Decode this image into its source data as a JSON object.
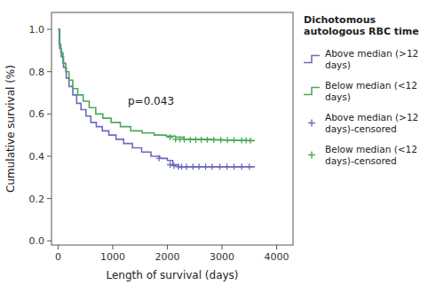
{
  "chart_data": {
    "type": "line",
    "title": "",
    "xlabel": "Length of survival (days)",
    "ylabel": "Cumulative survival (%)",
    "xlim": [
      -120,
      4300
    ],
    "ylim": [
      -0.02,
      1.08
    ],
    "xticks": [
      0,
      1000,
      2000,
      3000,
      4000
    ],
    "yticks": [
      {
        "value": 0.0,
        "label": "0.0"
      },
      0.2,
      0.4,
      0.6,
      0.8,
      {
        "value": 1.0,
        "label": "1.0"
      }
    ],
    "grid": false,
    "legend": "right",
    "legend_title": "Dichotomous\nautologous RBC time",
    "annotations": [
      {
        "text": "p=0.043",
        "x": 1700,
        "y": 0.66
      }
    ],
    "series": [
      {
        "name": "Above median (>12\ndays)",
        "type": "line",
        "line_style": "solid",
        "color": "#6b6bbf",
        "x": [
          0,
          30,
          30,
          60,
          60,
          100,
          100,
          150,
          150,
          200,
          200,
          270,
          270,
          340,
          340,
          420,
          420,
          510,
          510,
          600,
          600,
          700,
          700,
          810,
          810,
          930,
          930,
          1060,
          1060,
          1200,
          1200,
          1360,
          1360,
          1530,
          1530,
          1700,
          1700,
          1860,
          1860,
          2000,
          2000,
          2100,
          2100,
          2200,
          2200,
          2400,
          2550,
          2700,
          2900,
          3100,
          3300,
          3500,
          3600
        ],
        "values": [
          1.0,
          1.0,
          0.91,
          0.91,
          0.87,
          0.87,
          0.82,
          0.82,
          0.77,
          0.77,
          0.73,
          0.73,
          0.69,
          0.69,
          0.65,
          0.65,
          0.62,
          0.62,
          0.59,
          0.59,
          0.56,
          0.56,
          0.54,
          0.54,
          0.52,
          0.52,
          0.5,
          0.5,
          0.48,
          0.48,
          0.46,
          0.46,
          0.44,
          0.44,
          0.42,
          0.42,
          0.4,
          0.4,
          0.39,
          0.39,
          0.38,
          0.38,
          0.36,
          0.36,
          0.35,
          0.35,
          0.35,
          0.35,
          0.35,
          0.35,
          0.35,
          0.35,
          0.35
        ]
      },
      {
        "name": "Below median (<12\ndays)",
        "type": "line",
        "line_style": "solid",
        "color": "#4aaa5a",
        "x": [
          0,
          20,
          20,
          50,
          50,
          90,
          90,
          140,
          140,
          200,
          200,
          270,
          270,
          360,
          360,
          460,
          460,
          570,
          570,
          690,
          690,
          820,
          820,
          970,
          970,
          1140,
          1140,
          1330,
          1330,
          1540,
          1540,
          1760,
          1760,
          1980,
          1980,
          2150,
          2150,
          2300,
          2300,
          2400,
          2500,
          2600,
          2700,
          2800,
          2900,
          3000,
          3100,
          3200,
          3300,
          3400,
          3500,
          3600
        ],
        "values": [
          1.0,
          1.0,
          0.93,
          0.93,
          0.89,
          0.89,
          0.84,
          0.84,
          0.8,
          0.8,
          0.76,
          0.76,
          0.72,
          0.72,
          0.69,
          0.69,
          0.66,
          0.66,
          0.63,
          0.63,
          0.6,
          0.6,
          0.58,
          0.58,
          0.56,
          0.56,
          0.54,
          0.54,
          0.52,
          0.52,
          0.51,
          0.51,
          0.5,
          0.5,
          0.495,
          0.495,
          0.49,
          0.49,
          0.48,
          0.48,
          0.48,
          0.48,
          0.48,
          0.48,
          0.478,
          0.478,
          0.476,
          0.476,
          0.475,
          0.475,
          0.474,
          0.474
        ]
      },
      {
        "name": "Above median (>12\ndays)-censored",
        "type": "scatter",
        "marker": "plus",
        "color": "#6b6bbf",
        "x": [
          1850,
          2050,
          2120,
          2200,
          2260,
          2350,
          2470,
          2580,
          2700,
          2820,
          2960,
          3090,
          3220,
          3360,
          3500
        ],
        "values": [
          0.39,
          0.36,
          0.355,
          0.35,
          0.35,
          0.35,
          0.35,
          0.35,
          0.35,
          0.35,
          0.35,
          0.35,
          0.35,
          0.35,
          0.35
        ]
      },
      {
        "name": "Below median (<12\ndays)-censored",
        "type": "scatter",
        "marker": "plus",
        "color": "#4aaa5a",
        "x": [
          2050,
          2150,
          2230,
          2310,
          2420,
          2520,
          2620,
          2730,
          2850,
          2980,
          3100,
          3220,
          3360,
          3440,
          3520
        ],
        "values": [
          0.49,
          0.48,
          0.48,
          0.48,
          0.478,
          0.478,
          0.478,
          0.477,
          0.477,
          0.476,
          0.476,
          0.476,
          0.475,
          0.475,
          0.474
        ]
      }
    ]
  }
}
